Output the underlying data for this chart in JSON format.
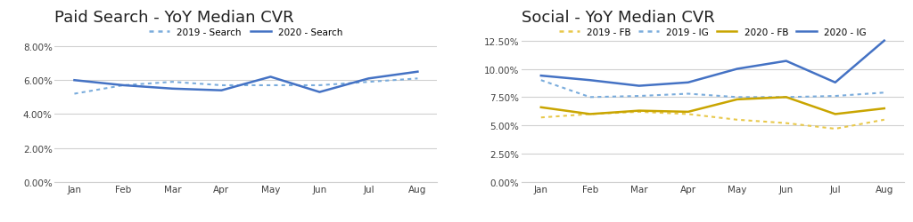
{
  "months": [
    "Jan",
    "Feb",
    "Mar",
    "Apr",
    "May",
    "Jun",
    "Jul",
    "Aug"
  ],
  "search_2019": [
    0.052,
    0.057,
    0.059,
    0.057,
    0.057,
    0.057,
    0.059,
    0.061
  ],
  "search_2020": [
    0.06,
    0.057,
    0.055,
    0.054,
    0.062,
    0.053,
    0.061,
    0.065
  ],
  "fb_2019": [
    0.057,
    0.06,
    0.062,
    0.06,
    0.055,
    0.052,
    0.047,
    0.055
  ],
  "ig_2019": [
    0.09,
    0.075,
    0.076,
    0.078,
    0.075,
    0.075,
    0.076,
    0.079
  ],
  "fb_2020": [
    0.066,
    0.06,
    0.063,
    0.062,
    0.073,
    0.075,
    0.06,
    0.065
  ],
  "ig_2020": [
    0.094,
    0.09,
    0.085,
    0.088,
    0.1,
    0.107,
    0.088,
    0.125
  ],
  "title_search": "Paid Search - YoY Median CVR",
  "title_social": "Social - YoY Median CVR",
  "legend_search": [
    "2019 - Search",
    "2020 - Search"
  ],
  "legend_social": [
    "2019 - FB",
    "2019 - IG",
    "2020 - FB",
    "2020 - IG"
  ],
  "color_blue_light": "#7aacdc",
  "color_blue_dark": "#4472c4",
  "color_yellow_light": "#e8c84a",
  "color_yellow_dark": "#c9a500",
  "search_ylim": [
    0.0,
    0.092
  ],
  "search_yticks": [
    0.0,
    0.02,
    0.04,
    0.06,
    0.08
  ],
  "social_ylim": [
    0.0,
    0.138
  ],
  "social_yticks": [
    0.0,
    0.025,
    0.05,
    0.075,
    0.1,
    0.125
  ],
  "title_fontsize": 13,
  "legend_fontsize": 7.5,
  "tick_fontsize": 7.5,
  "background_color": "#ffffff",
  "grid_color": "#d0d0d0",
  "text_color": "#404040"
}
